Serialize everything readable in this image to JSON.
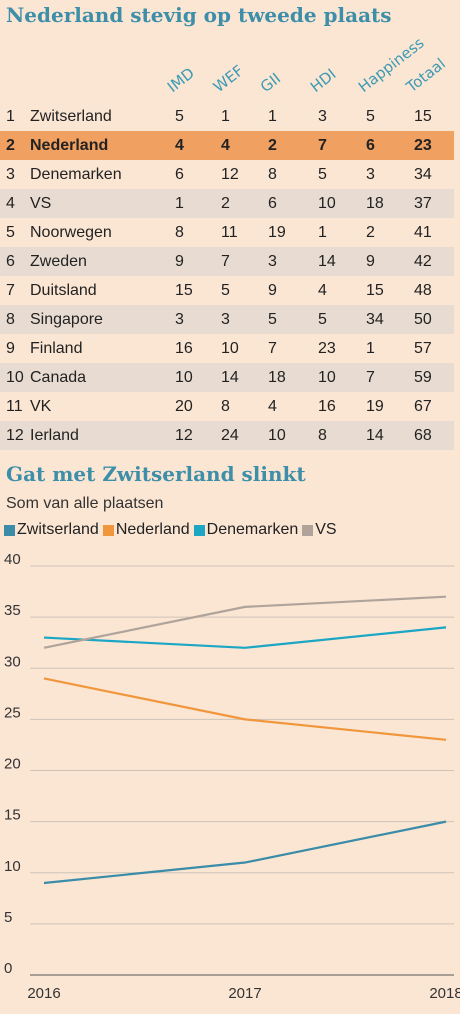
{
  "table": {
    "title": "Nederland stevig op tweede plaats",
    "columns": [
      "IMD",
      "WEF",
      "GII",
      "HDI",
      "Happiness",
      "Totaal"
    ],
    "rows": [
      {
        "rank": "1",
        "country": "Zwitserland",
        "values": [
          "5",
          "1",
          "1",
          "3",
          "5",
          "15"
        ]
      },
      {
        "rank": "2",
        "country": "Nederland",
        "values": [
          "4",
          "4",
          "2",
          "7",
          "6",
          "23"
        ]
      },
      {
        "rank": "3",
        "country": "Denemarken",
        "values": [
          "6",
          "12",
          "8",
          "5",
          "3",
          "34"
        ]
      },
      {
        "rank": "4",
        "country": "VS",
        "values": [
          "1",
          "2",
          "6",
          "10",
          "18",
          "37"
        ]
      },
      {
        "rank": "5",
        "country": "Noorwegen",
        "values": [
          "8",
          "11",
          "19",
          "1",
          "2",
          "41"
        ]
      },
      {
        "rank": "6",
        "country": "Zweden",
        "values": [
          "9",
          "7",
          "3",
          "14",
          "9",
          "42"
        ]
      },
      {
        "rank": "7",
        "country": "Duitsland",
        "values": [
          "15",
          "5",
          "9",
          "4",
          "15",
          "48"
        ]
      },
      {
        "rank": "8",
        "country": "Singapore",
        "values": [
          "3",
          "3",
          "5",
          "5",
          "34",
          "50"
        ]
      },
      {
        "rank": "9",
        "country": "Finland",
        "values": [
          "16",
          "10",
          "7",
          "23",
          "1",
          "57"
        ]
      },
      {
        "rank": "10",
        "country": "Canada",
        "values": [
          "10",
          "14",
          "18",
          "10",
          "7",
          "59"
        ]
      },
      {
        "rank": "11",
        "country": "VK",
        "values": [
          "20",
          "8",
          "4",
          "16",
          "19",
          "67"
        ]
      },
      {
        "rank": "12",
        "country": "Ierland",
        "values": [
          "12",
          "24",
          "10",
          "8",
          "14",
          "68"
        ]
      }
    ]
  },
  "chart_data": {
    "type": "line",
    "title": "Gat met Zwitserland slinkt",
    "subtitle": "Som van alle plaatsen",
    "x": [
      "2016",
      "2017",
      "2018"
    ],
    "ylim": [
      0,
      40
    ],
    "yticks": [
      "0",
      "5",
      "10",
      "15",
      "20",
      "25",
      "30",
      "35",
      "40"
    ],
    "grid": true,
    "legend_position": "top-left",
    "series": [
      {
        "name": "Zwitserland",
        "color": "#3a8ca8",
        "values": [
          9,
          11,
          15
        ]
      },
      {
        "name": "Nederland",
        "color": "#f0963c",
        "values": [
          29,
          25,
          23
        ]
      },
      {
        "name": "Denemarken",
        "color": "#1ba6c4",
        "values": [
          33,
          32,
          34
        ]
      },
      {
        "name": "VS",
        "color": "#b0a49a",
        "values": [
          32,
          36,
          37
        ]
      }
    ]
  }
}
